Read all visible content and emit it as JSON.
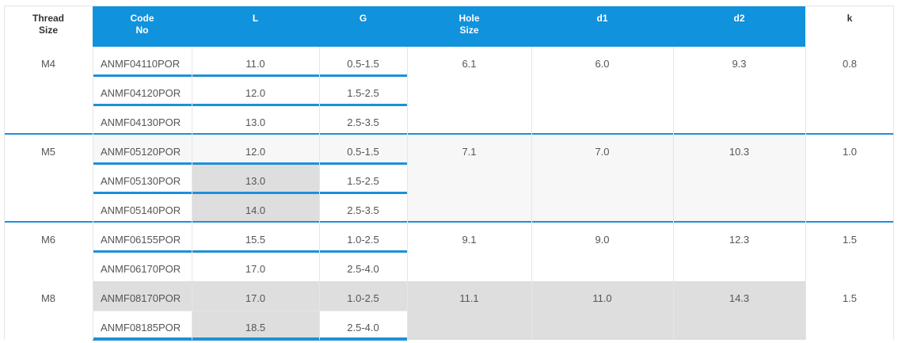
{
  "headers": {
    "thread_size": [
      "Thread",
      "Size"
    ],
    "code_no": [
      "Code",
      "No"
    ],
    "l": "L",
    "g": "G",
    "hole_size": [
      "Hole",
      "Size"
    ],
    "d1": "d1",
    "d2": "d2",
    "k": "k"
  },
  "groups": [
    {
      "thread": "M4",
      "hole": "6.1",
      "d1": "6.0",
      "d2": "9.3",
      "k": "0.8",
      "rows": [
        {
          "code": "ANMF04110POR",
          "l": "11.0",
          "g": "0.5-1.5"
        },
        {
          "code": "ANMF04120POR",
          "l": "12.0",
          "g": "1.5-2.5"
        },
        {
          "code": "ANMF04130POR",
          "l": "13.0",
          "g": "2.5-3.5"
        }
      ]
    },
    {
      "thread": "M5",
      "hole": "7.1",
      "d1": "7.0",
      "d2": "10.3",
      "k": "1.0",
      "rows": [
        {
          "code": "ANMF05120POR",
          "l": "12.0",
          "g": "0.5-1.5"
        },
        {
          "code": "ANMF05130POR",
          "l": "13.0",
          "g": "1.5-2.5"
        },
        {
          "code": "ANMF05140POR",
          "l": "14.0",
          "g": "2.5-3.5"
        }
      ]
    },
    {
      "thread": "M6",
      "hole": "9.1",
      "d1": "9.0",
      "d2": "12.3",
      "k": "1.5",
      "rows": [
        {
          "code": "ANMF06155POR",
          "l": "15.5",
          "g": "1.0-2.5"
        },
        {
          "code": "ANMF06170POR",
          "l": "17.0",
          "g": "2.5-4.0"
        }
      ]
    },
    {
      "thread": "M8",
      "hole": "11.1",
      "d1": "11.0",
      "d2": "14.3",
      "k": "1.5",
      "rows": [
        {
          "code": "ANMF08170POR",
          "l": "17.0",
          "g": "1.0-2.5"
        },
        {
          "code": "ANMF08185POR",
          "l": "18.5",
          "g": "2.5-4.0"
        }
      ]
    }
  ],
  "colors": {
    "header_blue": "#1192dc",
    "accent_line": "#1e90d8",
    "hover_gray": "#dedede",
    "stripe": "#f7f7f7"
  }
}
